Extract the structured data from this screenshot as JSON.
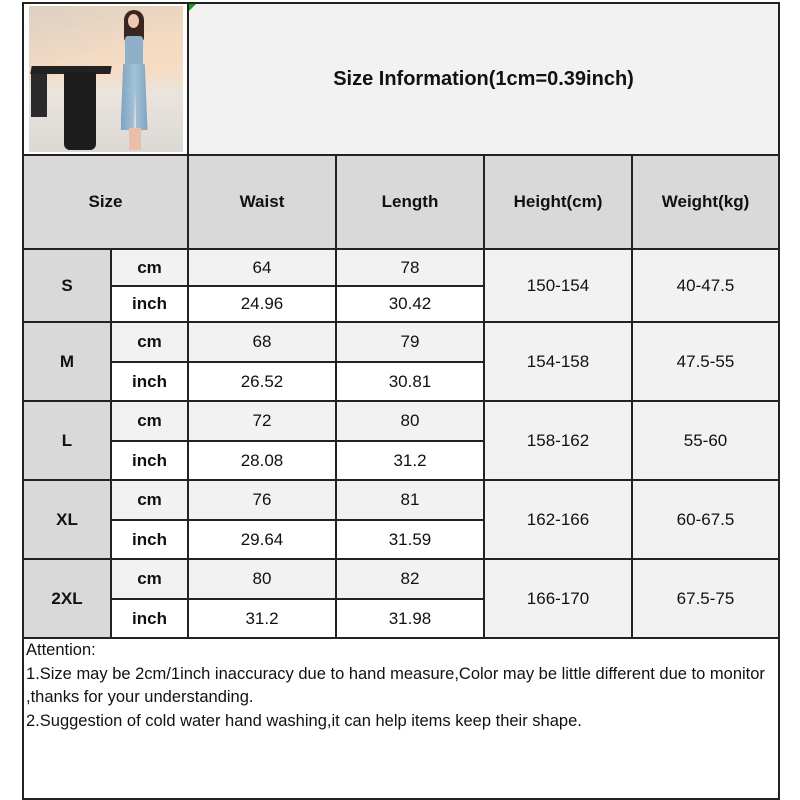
{
  "title": "Size Information(1cm=0.39inch)",
  "photo": {
    "icon": "product-photo-denim-dress"
  },
  "header": [
    "Size",
    "Waist",
    "Length",
    "Height(cm)",
    "Weight(kg)"
  ],
  "rows": [
    {
      "size": "S",
      "cm_label": "cm",
      "inch_label": "inch",
      "waist_cm": "64",
      "length_cm": "78",
      "waist_inch": "24.96",
      "length_inch": "30.42",
      "height": "150-154",
      "weight": "40-47.5"
    },
    {
      "size": "M",
      "cm_label": "cm",
      "inch_label": "inch",
      "waist_cm": "68",
      "length_cm": "79",
      "waist_inch": "26.52",
      "length_inch": "30.81",
      "height": "154-158",
      "weight": "47.5-55"
    },
    {
      "size": "L",
      "cm_label": "cm",
      "inch_label": "inch",
      "waist_cm": "72",
      "length_cm": "80",
      "waist_inch": "28.08",
      "length_inch": "31.2",
      "height": "158-162",
      "weight": "55-60"
    },
    {
      "size": "XL",
      "cm_label": "cm",
      "inch_label": "inch",
      "waist_cm": "76",
      "length_cm": "81",
      "waist_inch": "29.64",
      "length_inch": "31.59",
      "height": "162-166",
      "weight": "60-67.5"
    },
    {
      "size": "2XL",
      "cm_label": "cm",
      "inch_label": "inch",
      "waist_cm": "80",
      "length_cm": "82",
      "waist_inch": "31.2",
      "length_inch": "31.98",
      "height": "166-170",
      "weight": "67.5-75"
    }
  ],
  "notes": [
    "Attention:",
    "1.Size may be 2cm/1inch inaccuracy due to hand measure,Color may be little different due to monitor ,thanks for your understanding.",
    "2.Suggestion of cold water hand washing,it can help items keep their shape."
  ],
  "colors": {
    "header_gray": "#d9d9d9",
    "light_gray": "#f2f2f2",
    "border": "#222222"
  }
}
